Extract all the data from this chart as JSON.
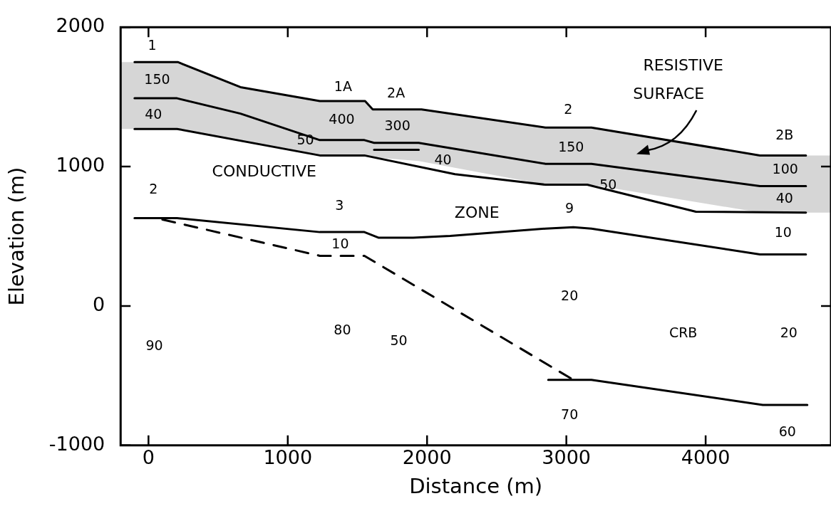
{
  "chart_data": {
    "type": "line",
    "xlabel": "Distance (m)",
    "ylabel": "Elevation (m)",
    "xlim": [
      -200,
      4900
    ],
    "ylim": [
      -1000,
      2000
    ],
    "xticks": [
      0,
      1000,
      2000,
      3000,
      4000
    ],
    "yticks": [
      -1000,
      0,
      1000,
      2000
    ],
    "marker": "none",
    "line_style": "solid",
    "series": [
      {
        "color": "#000000",
        "x": [
          -100,
          210,
          660,
          1230,
          1555,
          1610,
          1960,
          2850,
          3180,
          4390,
          4720
        ],
        "values": [
          1750,
          1750,
          1570,
          1470,
          1470,
          1410,
          1410,
          1280,
          1280,
          1080,
          1080
        ]
      },
      {
        "color": "#000000",
        "x": [
          -200,
          -100,
          205,
          660,
          1230,
          1550,
          1620,
          1940,
          2850,
          3180,
          4390,
          4720,
          4900
        ],
        "values": [
          null,
          1490,
          1490,
          1380,
          1190,
          1190,
          1170,
          1170,
          1020,
          1020,
          860,
          860,
          null
        ],
        "upper": [
          1750,
          1750,
          1750,
          1570,
          1470,
          1470,
          1410,
          1410,
          1280,
          1280,
          1080,
          1080,
          1080
        ],
        "lower": [
          1270,
          1270,
          1270,
          1180,
          1080,
          1080,
          1065,
          1040,
          870,
          870,
          670,
          670,
          670
        ]
      },
      {
        "color": "#000000",
        "x": [
          -100,
          205,
          1230,
          1550,
          2200,
          2850,
          3150,
          3930,
          4720
        ],
        "values": [
          1270,
          1270,
          1080,
          1080,
          945,
          870,
          870,
          676,
          670
        ]
      },
      {
        "color": "#000000",
        "x": [
          1620,
          1940
        ],
        "values": [
          1120,
          1120
        ]
      },
      {
        "color": "#000000",
        "x": [
          -100,
          205,
          1230,
          1550,
          1650,
          1900,
          2166,
          2850,
          3050,
          3180,
          4390,
          4720
        ],
        "values": [
          630,
          630,
          530,
          530,
          490,
          490,
          503,
          555,
          565,
          555,
          370,
          370
        ]
      },
      {
        "color": "#000000",
        "line_style": "dashed",
        "x": [
          100,
          1230,
          1550,
          3050
        ],
        "values": [
          620,
          360,
          360,
          -530
        ]
      },
      {
        "color": "#000000",
        "x": [
          2870,
          3180,
          4410,
          4730
        ],
        "values": [
          -530,
          -530,
          -710,
          -710
        ]
      }
    ],
    "annotations": [
      "1",
      "150",
      "40",
      "1A",
      "2A",
      "400",
      "300",
      "50",
      "40",
      "CONDUCTIVE",
      "2",
      "3",
      "10",
      "ZONE",
      "RESISTIVE",
      "SURFACE",
      "2",
      "150",
      "50",
      "9",
      "2B",
      "100",
      "40",
      "10",
      "20",
      "90",
      "80",
      "50",
      "CRB",
      "20",
      "70",
      "60"
    ]
  }
}
